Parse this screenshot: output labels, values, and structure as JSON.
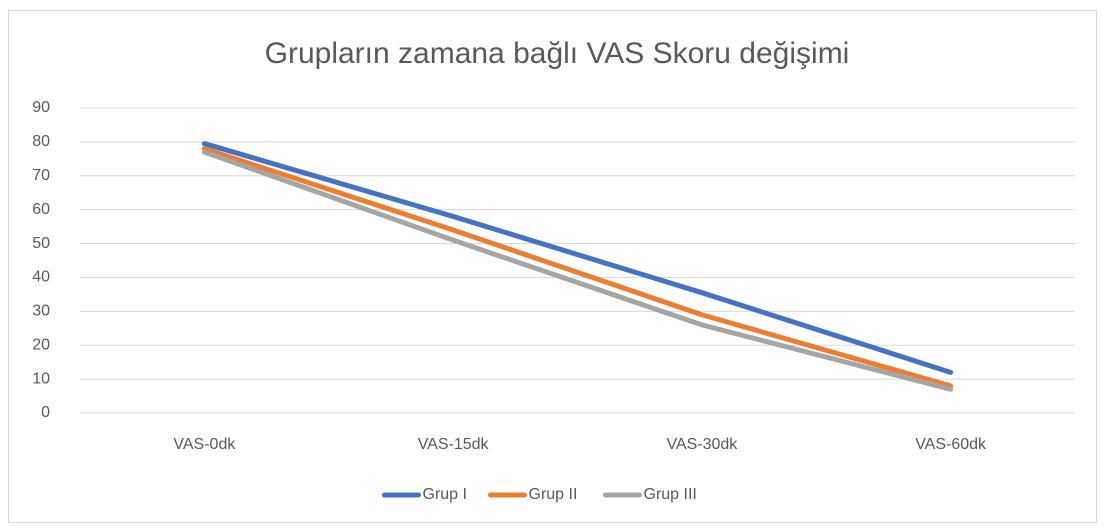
{
  "chart_data": {
    "type": "line",
    "title": "Grupların zamana bağlı VAS Skoru değişimi",
    "categories": [
      "VAS-0dk",
      "VAS-15dk",
      "VAS-30dk",
      "VAS-60dk"
    ],
    "series": [
      {
        "name": "Grup I",
        "color": "#4472c4",
        "values": [
          79.5,
          58,
          35.5,
          12
        ]
      },
      {
        "name": "Grup II",
        "color": "#ed7d31",
        "values": [
          78,
          54,
          29,
          8
        ]
      },
      {
        "name": "Grup III",
        "color": "#a5a5a5",
        "values": [
          77,
          51,
          26,
          7
        ]
      }
    ],
    "ylim": [
      0,
      90
    ],
    "yticks": [
      0,
      10,
      20,
      30,
      40,
      50,
      60,
      70,
      80,
      90
    ],
    "grid": true,
    "legend": "bottom"
  }
}
